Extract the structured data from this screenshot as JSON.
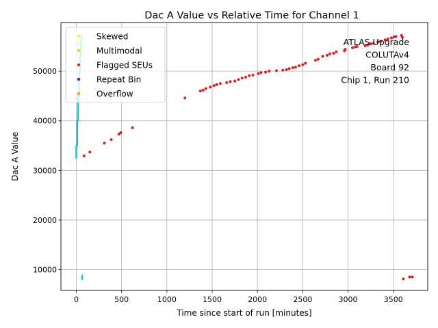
{
  "chart_data": {
    "type": "scatter",
    "title": "Dac A Value vs Relative Time for Channel 1",
    "xlabel": "Time since start of run [minutes]",
    "ylabel": "Dac A Value",
    "xlim": [
      -170,
      3880
    ],
    "ylim": [
      5800,
      59800
    ],
    "x_ticks": [
      0,
      500,
      1000,
      1500,
      2000,
      2500,
      3000,
      3500
    ],
    "y_ticks": [
      10000,
      20000,
      30000,
      40000,
      50000
    ],
    "grid": true,
    "legend_position": "top-left",
    "legend": [
      {
        "label": "Skewed",
        "color": "#ffff00"
      },
      {
        "label": "Multimodal",
        "color": "#99ff00"
      },
      {
        "label": "Flagged SEUs",
        "color": "#d62728"
      },
      {
        "label": "Repeat Bin",
        "color": "#6a0dad"
      },
      {
        "label": "Overflow",
        "color": "#ff9900"
      }
    ],
    "annotation": [
      "ATLAS Upgrade",
      "COLUTAv4",
      "Board 92",
      "Chip 1, Run 210"
    ],
    "series": [
      {
        "color": "#17becf",
        "style": "vertical-segments",
        "segments": [
          {
            "x": 0,
            "y_min": 32500,
            "y_max": 35000
          },
          {
            "x": 10,
            "y_min": 35000,
            "y_max": 40000
          },
          {
            "x": 20,
            "y_min": 40000,
            "y_max": 45000
          },
          {
            "x": 30,
            "y_min": 45000,
            "y_max": 49500
          },
          {
            "x": 40,
            "y_min": 49500,
            "y_max": 53000
          },
          {
            "x": 50,
            "y_min": 53000,
            "y_max": 56000
          },
          {
            "x": 60,
            "y_min": 56000,
            "y_max": 57200
          },
          {
            "x": 65,
            "y_min": 8000,
            "y_max": 8800
          }
        ]
      },
      {
        "color": "#d62728",
        "style": "points",
        "points": [
          [
            85,
            32900
          ],
          [
            150,
            33700
          ],
          [
            310,
            35500
          ],
          [
            385,
            36200
          ],
          [
            470,
            37300
          ],
          [
            490,
            37600
          ],
          [
            620,
            38600
          ],
          [
            1200,
            44600
          ],
          [
            1370,
            46000
          ],
          [
            1400,
            46200
          ],
          [
            1430,
            46500
          ],
          [
            1480,
            46800
          ],
          [
            1520,
            47100
          ],
          [
            1550,
            47300
          ],
          [
            1590,
            47500
          ],
          [
            1660,
            47700
          ],
          [
            1700,
            47900
          ],
          [
            1750,
            48000
          ],
          [
            1790,
            48300
          ],
          [
            1830,
            48600
          ],
          [
            1870,
            48800
          ],
          [
            1910,
            49100
          ],
          [
            1950,
            49200
          ],
          [
            2010,
            49500
          ],
          [
            2040,
            49700
          ],
          [
            2090,
            49800
          ],
          [
            2130,
            50000
          ],
          [
            2210,
            50100
          ],
          [
            2280,
            50200
          ],
          [
            2320,
            50300
          ],
          [
            2350,
            50500
          ],
          [
            2390,
            50700
          ],
          [
            2420,
            50800
          ],
          [
            2460,
            51100
          ],
          [
            2500,
            51300
          ],
          [
            2530,
            51600
          ],
          [
            2640,
            52200
          ],
          [
            2670,
            52400
          ],
          [
            2720,
            53000
          ],
          [
            2770,
            53200
          ],
          [
            2800,
            53500
          ],
          [
            2840,
            53600
          ],
          [
            2870,
            53900
          ],
          [
            2960,
            54100
          ],
          [
            2970,
            54400
          ],
          [
            3050,
            54700
          ],
          [
            3080,
            54900
          ],
          [
            3100,
            55000
          ],
          [
            3190,
            55100
          ],
          [
            3220,
            55300
          ],
          [
            3250,
            55500
          ],
          [
            3280,
            55600
          ],
          [
            3330,
            55900
          ],
          [
            3360,
            56000
          ],
          [
            3410,
            56300
          ],
          [
            3440,
            56500
          ],
          [
            3480,
            56700
          ],
          [
            3510,
            56900
          ],
          [
            3530,
            57000
          ],
          [
            3590,
            57200
          ],
          [
            3600,
            56800
          ],
          [
            3610,
            8100
          ],
          [
            3680,
            8500
          ],
          [
            3710,
            8500
          ]
        ]
      }
    ]
  }
}
